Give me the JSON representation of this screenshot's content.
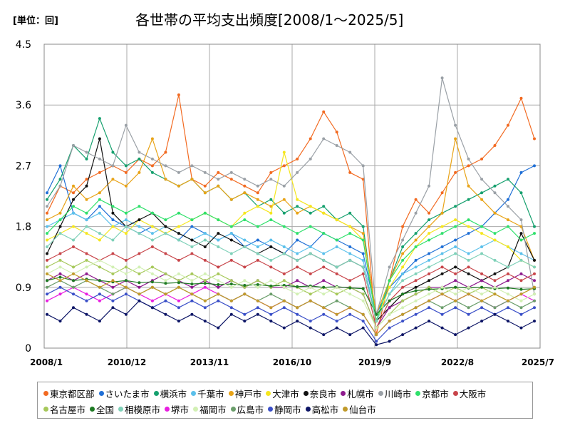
{
  "header": {
    "unit": "[単位：回]",
    "title": "各世帯の平均支出頻度[2008/1～2025/5]"
  },
  "chart_data": {
    "type": "line",
    "title": "各世帯の平均支出頻度[2008/1～2025/5]",
    "unit": "[単位：回]",
    "x_ticks": [
      "2008/1",
      "2010/12",
      "2013/11",
      "2016/10",
      "2019/9",
      "2022/8",
      "2025/7"
    ],
    "x_range": [
      "2008/1",
      "2025/7"
    ],
    "y_ticks": [
      "0",
      "0.9",
      "1.8",
      "2.7",
      "3.6",
      "4.5"
    ],
    "ylim": [
      0,
      4.5
    ],
    "grid": true,
    "legend_position": "bottom",
    "series": [
      {
        "name": "東京都区部",
        "color": "#f26a21",
        "values": [
          2.0,
          2.4,
          2.3,
          2.5,
          2.6,
          2.7,
          2.6,
          2.8,
          2.7,
          2.9,
          3.75,
          2.5,
          2.4,
          2.6,
          2.5,
          2.4,
          2.3,
          2.6,
          2.7,
          2.8,
          3.1,
          3.5,
          3.2,
          2.6,
          2.5,
          0.2,
          1.0,
          1.8,
          2.2,
          2.0,
          2.3,
          2.6,
          2.7,
          2.8,
          3.0,
          3.3,
          3.7,
          3.1
        ]
      },
      {
        "name": "さいたま市",
        "color": "#1f6fd6",
        "values": [
          2.3,
          2.7,
          2.0,
          1.9,
          2.1,
          1.9,
          1.8,
          1.7,
          1.8,
          1.7,
          1.6,
          1.8,
          1.7,
          1.6,
          1.7,
          1.5,
          1.6,
          1.5,
          1.4,
          1.6,
          1.5,
          1.7,
          1.6,
          1.5,
          1.4,
          0.5,
          0.9,
          1.1,
          1.3,
          1.4,
          1.5,
          1.6,
          1.7,
          1.8,
          2.0,
          2.2,
          2.6,
          2.7
        ]
      },
      {
        "name": "横浜市",
        "color": "#16a06e",
        "values": [
          2.2,
          2.5,
          3.0,
          2.8,
          3.4,
          2.9,
          2.7,
          2.8,
          2.6,
          2.5,
          2.4,
          2.5,
          2.3,
          2.4,
          2.2,
          2.3,
          2.1,
          2.2,
          2.0,
          2.1,
          2.0,
          2.1,
          1.9,
          2.0,
          1.8,
          0.4,
          1.0,
          1.5,
          1.7,
          1.9,
          2.0,
          2.1,
          2.2,
          2.3,
          2.4,
          2.5,
          2.3,
          1.8
        ]
      },
      {
        "name": "千葉市",
        "color": "#5bc0eb",
        "values": [
          1.8,
          1.9,
          2.0,
          1.9,
          2.0,
          1.8,
          1.9,
          1.8,
          1.7,
          1.8,
          1.7,
          1.6,
          1.7,
          1.6,
          1.7,
          1.6,
          1.5,
          1.6,
          1.5,
          1.4,
          1.5,
          1.4,
          1.5,
          1.4,
          1.3,
          0.4,
          0.8,
          1.1,
          1.2,
          1.3,
          1.4,
          1.5,
          1.4,
          1.5,
          1.6,
          1.5,
          1.4,
          1.3
        ]
      },
      {
        "name": "神戸市",
        "color": "#e8a317",
        "values": [
          1.9,
          2.0,
          2.4,
          2.2,
          2.3,
          2.5,
          2.4,
          2.6,
          3.1,
          2.5,
          2.4,
          2.5,
          2.3,
          2.4,
          2.2,
          2.3,
          2.2,
          2.1,
          2.2,
          2.0,
          2.1,
          2.0,
          1.9,
          1.8,
          1.7,
          0.5,
          1.0,
          1.4,
          1.6,
          1.8,
          2.0,
          3.1,
          2.4,
          2.2,
          2.0,
          1.9,
          1.8,
          1.3
        ]
      },
      {
        "name": "大津市",
        "color": "#f5e61e",
        "values": [
          1.6,
          1.7,
          1.8,
          1.7,
          1.6,
          1.8,
          1.7,
          1.9,
          1.8,
          1.7,
          1.8,
          1.9,
          2.0,
          1.9,
          1.8,
          2.0,
          2.1,
          2.0,
          2.9,
          2.2,
          2.1,
          2.0,
          1.9,
          1.8,
          1.6,
          0.4,
          0.9,
          1.2,
          1.5,
          1.7,
          1.8,
          1.9,
          1.8,
          1.7,
          1.6,
          1.5,
          1.3,
          1.2
        ]
      },
      {
        "name": "奈良市",
        "color": "#111111",
        "values": [
          1.4,
          1.8,
          2.2,
          2.4,
          3.1,
          2.0,
          1.8,
          1.9,
          2.0,
          1.8,
          1.7,
          1.6,
          1.5,
          1.7,
          1.6,
          1.5,
          1.4,
          1.5,
          1.4,
          1.3,
          1.4,
          1.3,
          1.2,
          1.3,
          1.2,
          0.4,
          0.6,
          0.8,
          0.9,
          1.0,
          1.1,
          1.2,
          1.1,
          1.0,
          1.1,
          1.2,
          1.7,
          1.3
        ]
      },
      {
        "name": "札幌市",
        "color": "#8e1b8e",
        "values": [
          1.0,
          1.1,
          1.0,
          1.1,
          1.0,
          0.9,
          1.0,
          0.9,
          1.0,
          1.1,
          1.0,
          0.9,
          1.0,
          0.9,
          1.0,
          0.9,
          1.0,
          0.9,
          0.9,
          1.0,
          0.9,
          1.0,
          0.9,
          0.9,
          0.8,
          0.3,
          0.6,
          0.7,
          0.8,
          0.9,
          0.9,
          1.0,
          0.9,
          1.0,
          0.9,
          1.0,
          1.1,
          1.0
        ]
      },
      {
        "name": "川崎市",
        "color": "#9aa0a6",
        "values": [
          2.1,
          2.4,
          3.0,
          2.9,
          2.8,
          2.7,
          3.3,
          2.9,
          2.8,
          2.7,
          2.6,
          2.7,
          2.6,
          2.5,
          2.6,
          2.5,
          2.4,
          2.5,
          2.4,
          2.6,
          2.8,
          3.1,
          3.0,
          2.9,
          2.7,
          0.5,
          1.2,
          1.6,
          2.0,
          2.4,
          4.0,
          3.3,
          2.8,
          2.5,
          2.3,
          2.1,
          1.9,
          0.8
        ]
      },
      {
        "name": "京都市",
        "color": "#2fe06b",
        "values": [
          1.7,
          1.9,
          2.1,
          2.0,
          2.2,
          2.1,
          2.0,
          2.1,
          2.0,
          1.9,
          2.0,
          1.9,
          2.0,
          1.9,
          1.8,
          1.9,
          1.8,
          1.9,
          1.8,
          1.7,
          1.8,
          1.7,
          1.6,
          1.7,
          1.6,
          0.4,
          1.0,
          1.3,
          1.5,
          1.6,
          1.7,
          1.8,
          1.9,
          1.8,
          1.7,
          1.8,
          1.6,
          1.7
        ]
      },
      {
        "name": "大阪市",
        "color": "#c8454a",
        "values": [
          1.3,
          1.4,
          1.5,
          1.4,
          1.3,
          1.4,
          1.3,
          1.4,
          1.5,
          1.4,
          1.3,
          1.4,
          1.3,
          1.2,
          1.3,
          1.2,
          1.3,
          1.2,
          1.1,
          1.2,
          1.1,
          1.2,
          1.1,
          1.0,
          1.1,
          0.3,
          0.7,
          0.9,
          1.0,
          1.1,
          1.2,
          1.1,
          1.2,
          1.1,
          1.0,
          1.1,
          1.0,
          1.1
        ]
      },
      {
        "name": "名古屋市",
        "color": "#a6c85a",
        "values": [
          1.2,
          1.3,
          1.2,
          1.3,
          1.2,
          1.1,
          1.2,
          1.1,
          1.2,
          1.1,
          1.0,
          1.1,
          1.0,
          1.1,
          1.0,
          0.9,
          1.0,
          0.9,
          1.0,
          0.9,
          0.8,
          0.9,
          0.8,
          0.9,
          0.8,
          0.3,
          0.5,
          0.7,
          0.8,
          0.9,
          0.8,
          0.9,
          0.8,
          0.9,
          0.8,
          0.7,
          0.8,
          0.9
        ]
      },
      {
        "name": "全国",
        "color": "#1e7a23",
        "values": [
          1.0,
          1.05,
          1.0,
          1.02,
          1.0,
          0.98,
          1.0,
          0.97,
          0.98,
          0.96,
          0.97,
          0.95,
          0.96,
          0.94,
          0.95,
          0.93,
          0.94,
          0.92,
          0.93,
          0.91,
          0.92,
          0.9,
          0.91,
          0.89,
          0.88,
          0.5,
          0.7,
          0.8,
          0.85,
          0.87,
          0.88,
          0.9,
          0.89,
          0.9,
          0.88,
          0.89,
          0.87,
          0.88
        ]
      },
      {
        "name": "相模原市",
        "color": "#7fd1b9",
        "values": [
          1.5,
          1.7,
          1.6,
          1.8,
          1.7,
          1.6,
          1.8,
          1.7,
          1.6,
          1.7,
          1.6,
          1.5,
          1.6,
          1.5,
          1.4,
          1.5,
          1.4,
          1.3,
          1.4,
          1.3,
          1.4,
          1.3,
          1.2,
          1.3,
          1.2,
          0.4,
          0.8,
          1.0,
          1.1,
          1.2,
          1.3,
          1.4,
          1.3,
          1.4,
          1.3,
          1.2,
          1.3,
          1.2
        ]
      },
      {
        "name": "堺市",
        "color": "#e81ee0",
        "values": [
          0.7,
          0.8,
          0.9,
          0.8,
          0.7,
          0.8,
          0.9,
          0.8,
          0.7,
          0.8,
          0.7,
          0.8,
          0.9,
          0.8,
          0.7,
          0.8,
          0.7,
          0.6,
          0.7,
          0.6,
          0.7,
          0.6,
          0.5,
          0.6,
          0.5,
          0.2,
          0.4,
          0.5,
          0.6,
          0.7,
          0.8,
          0.7,
          0.8,
          0.7,
          0.6,
          0.7,
          0.8,
          0.7
        ]
      },
      {
        "name": "福岡市",
        "color": "#d2f0b4",
        "values": [
          1.1,
          1.2,
          1.1,
          1.2,
          1.3,
          1.2,
          1.1,
          1.2,
          1.1,
          1.0,
          1.1,
          1.0,
          1.1,
          1.0,
          0.9,
          1.0,
          0.9,
          1.0,
          0.9,
          0.8,
          0.9,
          0.8,
          0.9,
          0.8,
          0.7,
          0.3,
          0.5,
          0.6,
          0.7,
          0.8,
          0.9,
          0.8,
          0.9,
          0.8,
          0.9,
          0.8,
          0.7,
          0.8
        ]
      },
      {
        "name": "広島市",
        "color": "#6b9e6b",
        "values": [
          0.9,
          1.0,
          0.9,
          1.0,
          0.9,
          0.8,
          0.9,
          0.8,
          0.9,
          0.8,
          0.9,
          0.8,
          0.7,
          0.8,
          0.7,
          0.8,
          0.7,
          0.8,
          0.7,
          0.6,
          0.7,
          0.6,
          0.7,
          0.6,
          0.5,
          0.2,
          0.4,
          0.5,
          0.6,
          0.7,
          0.6,
          0.7,
          0.6,
          0.7,
          0.6,
          0.7,
          0.6,
          0.7
        ]
      },
      {
        "name": "静岡市",
        "color": "#3a4fc8",
        "values": [
          0.8,
          0.9,
          0.8,
          0.7,
          0.8,
          0.7,
          0.8,
          0.7,
          0.6,
          0.7,
          0.6,
          0.7,
          0.6,
          0.7,
          0.6,
          0.5,
          0.6,
          0.5,
          0.6,
          0.5,
          0.4,
          0.5,
          0.4,
          0.5,
          0.4,
          0.1,
          0.3,
          0.4,
          0.5,
          0.6,
          0.5,
          0.6,
          0.5,
          0.6,
          0.5,
          0.6,
          0.5,
          0.6
        ]
      },
      {
        "name": "高松市",
        "color": "#0d1566",
        "values": [
          0.5,
          0.4,
          0.6,
          0.5,
          0.4,
          0.6,
          0.5,
          0.7,
          0.6,
          0.5,
          0.4,
          0.5,
          0.4,
          0.3,
          0.5,
          0.4,
          0.5,
          0.4,
          0.3,
          0.4,
          0.3,
          0.2,
          0.3,
          0.2,
          0.3,
          0.05,
          0.1,
          0.2,
          0.3,
          0.4,
          0.3,
          0.2,
          0.3,
          0.4,
          0.5,
          0.4,
          0.3,
          0.4
        ]
      },
      {
        "name": "仙台市",
        "color": "#c09a2a",
        "values": [
          1.1,
          1.0,
          1.1,
          1.0,
          0.9,
          1.0,
          0.9,
          0.8,
          0.9,
          0.8,
          0.9,
          0.8,
          0.7,
          0.8,
          0.7,
          0.8,
          0.7,
          0.6,
          0.7,
          0.6,
          0.7,
          0.6,
          0.5,
          0.6,
          0.5,
          0.2,
          0.4,
          0.5,
          0.6,
          0.7,
          0.8,
          0.7,
          0.8,
          0.7,
          0.8,
          0.7,
          0.8,
          0.9
        ]
      }
    ]
  }
}
